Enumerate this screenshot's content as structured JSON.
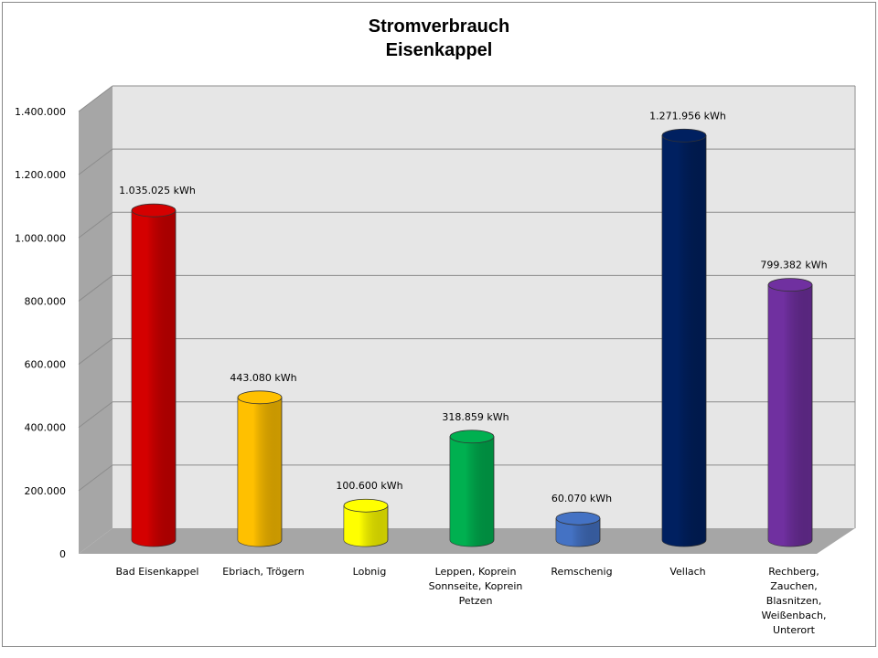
{
  "chart_data": {
    "type": "bar",
    "title_lines": [
      "Stromverbrauch",
      "Eisenkappel"
    ],
    "ylim": [
      0,
      1400000
    ],
    "y_ticks": [
      {
        "value": 0,
        "label": "0"
      },
      {
        "value": 200000,
        "label": "200.000"
      },
      {
        "value": 400000,
        "label": "400.000"
      },
      {
        "value": 600000,
        "label": "600.000"
      },
      {
        "value": 800000,
        "label": "800.000"
      },
      {
        "value": 1000000,
        "label": "1.000.000"
      },
      {
        "value": 1200000,
        "label": "1.200.000"
      },
      {
        "value": 1400000,
        "label": "1.400.000"
      }
    ],
    "grid": true,
    "legend": "none",
    "bars": [
      {
        "category_lines": [
          "Bad Eisenkappel"
        ],
        "value": 1035025,
        "label": "1.035.025 kWh",
        "color": "#d40000"
      },
      {
        "category_lines": [
          "Ebriach, Trögern"
        ],
        "value": 443080,
        "label": "443.080 kWh",
        "color": "#ffc000"
      },
      {
        "category_lines": [
          "Lobnig"
        ],
        "value": 100600,
        "label": "100.600 kWh",
        "color": "#ffff00"
      },
      {
        "category_lines": [
          "Leppen, Koprein",
          "Sonnseite, Koprein",
          "Petzen"
        ],
        "value": 318859,
        "label": "318.859 kWh",
        "color": "#00b050"
      },
      {
        "category_lines": [
          "Remschenig"
        ],
        "value": 60070,
        "label": "60.070 kWh",
        "color": "#4472c4"
      },
      {
        "category_lines": [
          "Vellach"
        ],
        "value": 1271956,
        "label": "1.271.956 kWh",
        "color": "#002060"
      },
      {
        "category_lines": [
          "Rechberg,",
          "Zauchen,",
          "Blasnitzen,",
          "Weißenbach,",
          "Unterort"
        ],
        "value": 799382,
        "label": "799.382 kWh",
        "color": "#7030a0"
      }
    ]
  }
}
